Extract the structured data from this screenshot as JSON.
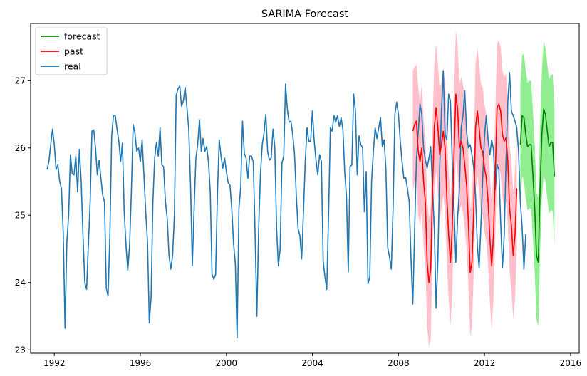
{
  "chart_data": {
    "type": "line",
    "title": "SARIMA Forecast",
    "xlabel": "",
    "ylabel": "",
    "xlim": [
      1990.9,
      2016.4
    ],
    "ylim": [
      22.95,
      27.85
    ],
    "x_ticks": [
      1992,
      1996,
      2000,
      2004,
      2008,
      2012,
      2016
    ],
    "y_ticks": [
      23,
      24,
      25,
      26,
      27
    ],
    "grid": false,
    "legend_position": "top-left",
    "colors": {
      "forecast": "#008000",
      "past": "#ff0000",
      "real": "#1f77b4",
      "forecast_band": "#90ee90",
      "past_band": "#ffc0cb"
    },
    "series": [
      {
        "name": "real",
        "start": 1991.667,
        "step": 0.08333,
        "values": [
          25.68,
          25.8,
          26.05,
          26.28,
          26.05,
          25.68,
          25.75,
          25.5,
          25.4,
          24.72,
          23.32,
          24.6,
          25.0,
          25.9,
          25.62,
          25.6,
          25.88,
          25.35,
          25.98,
          25.5,
          24.7,
          24.0,
          23.9,
          24.55,
          25.2,
          26.25,
          26.27,
          26.0,
          25.6,
          25.82,
          25.55,
          25.3,
          25.2,
          23.92,
          23.8,
          24.7,
          26.18,
          26.48,
          26.48,
          26.28,
          26.1,
          25.8,
          26.07,
          25.05,
          24.55,
          24.18,
          24.55,
          25.35,
          26.35,
          26.22,
          25.95,
          26.0,
          25.8,
          26.12,
          25.6,
          25.05,
          24.6,
          23.4,
          23.78,
          25.2,
          25.85,
          26.08,
          25.88,
          26.3,
          25.75,
          25.72,
          25.2,
          24.95,
          24.4,
          24.2,
          24.4,
          25.0,
          26.78,
          26.88,
          26.92,
          26.62,
          26.7,
          26.9,
          26.6,
          26.28,
          25.45,
          24.25,
          25.1,
          25.85,
          26.05,
          26.42,
          25.95,
          26.14,
          25.95,
          26.02,
          25.8,
          25.35,
          24.12,
          24.05,
          24.12,
          25.3,
          26.12,
          25.88,
          25.7,
          25.85,
          25.65,
          25.48,
          25.45,
          25.1,
          24.58,
          24.28,
          23.18,
          25.1,
          25.42,
          26.4,
          25.92,
          25.85,
          25.55,
          25.88,
          25.88,
          25.8,
          24.75,
          23.5,
          24.8,
          25.6,
          26.05,
          26.22,
          26.5,
          25.95,
          25.82,
          25.85,
          26.28,
          26.02,
          24.8,
          24.25,
          24.5,
          25.78,
          25.88,
          26.95,
          26.58,
          26.38,
          26.4,
          26.2,
          25.92,
          25.3,
          24.8,
          24.7,
          24.35,
          25.05,
          25.8,
          26.3,
          26.1,
          26.1,
          26.55,
          26.1,
          25.82,
          25.6,
          25.9,
          25.8,
          24.32,
          24.08,
          23.9,
          25.0,
          26.3,
          26.25,
          26.48,
          26.38,
          26.48,
          26.32,
          26.45,
          26.28,
          25.65,
          25.28,
          24.16,
          25.72,
          25.75,
          26.8,
          26.55,
          25.6,
          26.18,
          26.05,
          26.0,
          25.05,
          25.65,
          23.98,
          24.08,
          25.5,
          25.95,
          26.3,
          26.14,
          26.3,
          26.45,
          26.02,
          26.12,
          25.68,
          24.52,
          24.38,
          24.2,
          25.1,
          26.5,
          26.68,
          26.5,
          26.1,
          25.8,
          25.55,
          25.56,
          25.4,
          25.2,
          24.35,
          23.68,
          24.75,
          25.82,
          26.22,
          26.65,
          26.5,
          26.0,
          25.82,
          25.7,
          25.85,
          26.02,
          25.4,
          24.8,
          23.62,
          24.35,
          25.7,
          26.55,
          27.15,
          26.2,
          26.12,
          26.8,
          26.7,
          25.8,
          25.1,
          24.3,
          24.95,
          25.4,
          26.3,
          26.48,
          26.85,
          26.25,
          26.0,
          26.05,
          25.9,
          25.7,
          25.3,
          24.55,
          24.22,
          24.85,
          25.55,
          26.18,
          26.48,
          26.12,
          25.9,
          26.12,
          25.98,
          25.38,
          25.75,
          25.68,
          24.9,
          24.22,
          24.7,
          25.8,
          26.68,
          27.12,
          26.55,
          26.48,
          26.4,
          26.3,
          25.95,
          25.2,
          24.82,
          24.2,
          24.72
        ]
      },
      {
        "name": "past",
        "start": 2008.667,
        "step": 0.08333,
        "values": [
          26.25,
          26.35,
          26.4,
          25.95,
          25.8,
          26.0,
          25.5,
          25.2,
          24.3,
          24.0,
          24.2,
          25.4,
          26.3,
          26.6,
          26.3,
          25.9,
          26.05,
          26.25,
          26.0,
          25.25,
          24.7,
          24.3,
          24.8,
          25.9,
          26.8,
          26.58,
          26.0,
          26.1,
          26.0,
          25.75,
          25.45,
          24.9,
          24.15,
          24.3,
          25.1,
          26.3,
          26.55,
          26.3,
          26.0,
          25.95,
          25.7,
          25.55,
          25.2,
          24.65,
          24.25,
          24.7,
          25.6,
          26.6,
          26.65,
          26.55,
          26.2,
          26.1,
          26.15,
          25.8,
          25.1,
          24.85,
          24.4,
          24.7,
          25.4
        ]
      },
      {
        "name": "forecast",
        "start": 2013.667,
        "step": 0.08333,
        "values": [
          26.05,
          26.48,
          26.45,
          26.2,
          26.02,
          26.05,
          26.05,
          25.6,
          25.1,
          24.4,
          24.3,
          25.4,
          26.2,
          26.58,
          26.5,
          26.25,
          26.02,
          26.08,
          26.08,
          25.58
        ]
      }
    ],
    "bands": [
      {
        "series": "past",
        "upper": [
          27.15,
          27.2,
          27.25,
          26.9,
          26.7,
          26.95,
          26.45,
          26.15,
          25.25,
          24.95,
          25.15,
          26.35,
          27.25,
          27.55,
          27.25,
          26.85,
          27.0,
          27.2,
          26.95,
          26.2,
          25.65,
          25.25,
          25.75,
          26.85,
          27.75,
          27.53,
          26.95,
          27.05,
          26.95,
          26.7,
          26.4,
          25.85,
          25.1,
          25.25,
          26.05,
          27.25,
          27.5,
          27.25,
          26.95,
          26.9,
          26.65,
          26.5,
          26.15,
          25.6,
          25.2,
          25.65,
          26.55,
          27.55,
          27.6,
          27.5,
          27.15,
          27.05,
          27.1,
          26.75,
          26.05,
          25.8,
          25.35,
          25.65,
          26.35
        ],
        "lower": [
          25.35,
          25.5,
          25.55,
          25.0,
          24.85,
          25.05,
          24.55,
          24.25,
          23.35,
          23.05,
          23.15,
          24.45,
          25.35,
          25.65,
          25.35,
          24.95,
          25.1,
          25.3,
          25.05,
          24.3,
          23.75,
          23.35,
          23.85,
          24.95,
          25.85,
          25.63,
          25.05,
          25.15,
          25.05,
          24.8,
          24.5,
          23.95,
          23.2,
          23.35,
          24.15,
          25.35,
          25.6,
          25.35,
          25.05,
          25.0,
          24.75,
          24.6,
          24.25,
          23.7,
          23.3,
          23.75,
          24.65,
          25.65,
          25.7,
          25.6,
          25.25,
          25.15,
          25.2,
          24.85,
          24.15,
          23.9,
          23.45,
          23.75,
          24.45
        ]
      },
      {
        "series": "forecast",
        "upper": [
          26.95,
          27.38,
          27.4,
          27.15,
          26.97,
          27.0,
          27.0,
          26.55,
          26.05,
          25.35,
          25.25,
          26.35,
          27.15,
          27.58,
          27.5,
          27.25,
          27.02,
          27.08,
          27.1,
          26.62
        ],
        "lower": [
          25.15,
          25.58,
          25.5,
          25.25,
          25.07,
          25.1,
          25.1,
          24.65,
          24.15,
          23.45,
          23.35,
          24.45,
          25.25,
          25.58,
          25.5,
          25.25,
          25.02,
          25.08,
          25.06,
          24.54
        ]
      }
    ],
    "legend": [
      "forecast",
      "past",
      "real"
    ]
  }
}
